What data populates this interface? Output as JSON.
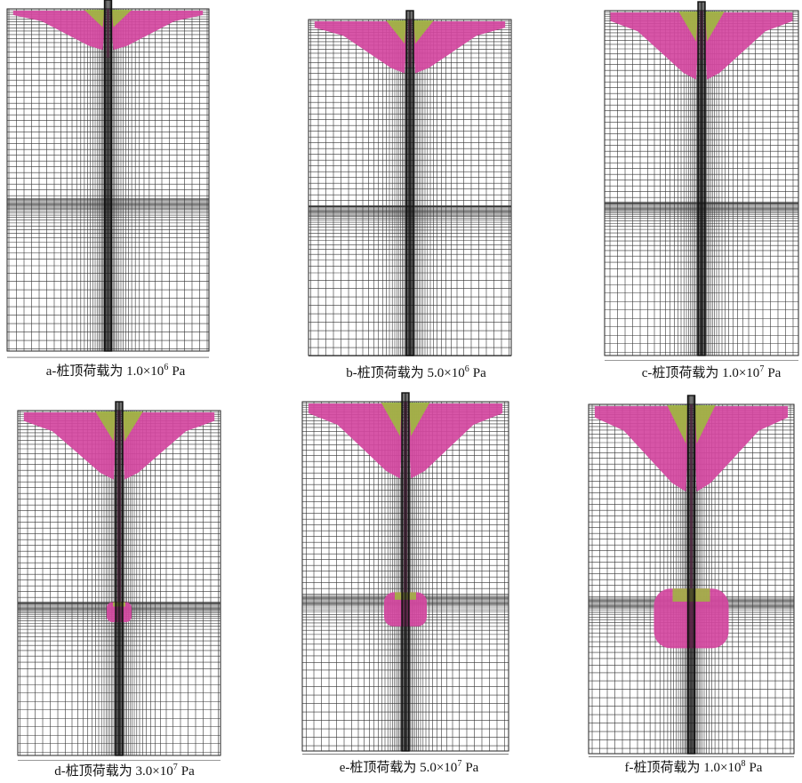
{
  "panels": [
    {
      "caption": {
        "prefix": "a-桩顶荷载为 1.0×10",
        "exponent": "6",
        "unit": "Pa"
      }
    },
    {
      "caption": {
        "prefix": "b-桩顶荷载为 5.0×10",
        "exponent": "6",
        "unit": "Pa"
      }
    },
    {
      "caption": {
        "prefix": "c-桩顶荷载为 1.0×10",
        "exponent": "7",
        "unit": "Pa"
      }
    },
    {
      "caption": {
        "prefix": "d-桩顶荷载为 3.0×10",
        "exponent": "7",
        "unit": "Pa"
      }
    },
    {
      "caption": {
        "prefix": "e-桩顶荷载为 5.0×10",
        "exponent": "7",
        "unit": "Pa"
      }
    },
    {
      "caption": {
        "prefix": "f-桩顶荷载为 1.0×10",
        "exponent": "8",
        "unit": "Pa"
      }
    }
  ]
}
